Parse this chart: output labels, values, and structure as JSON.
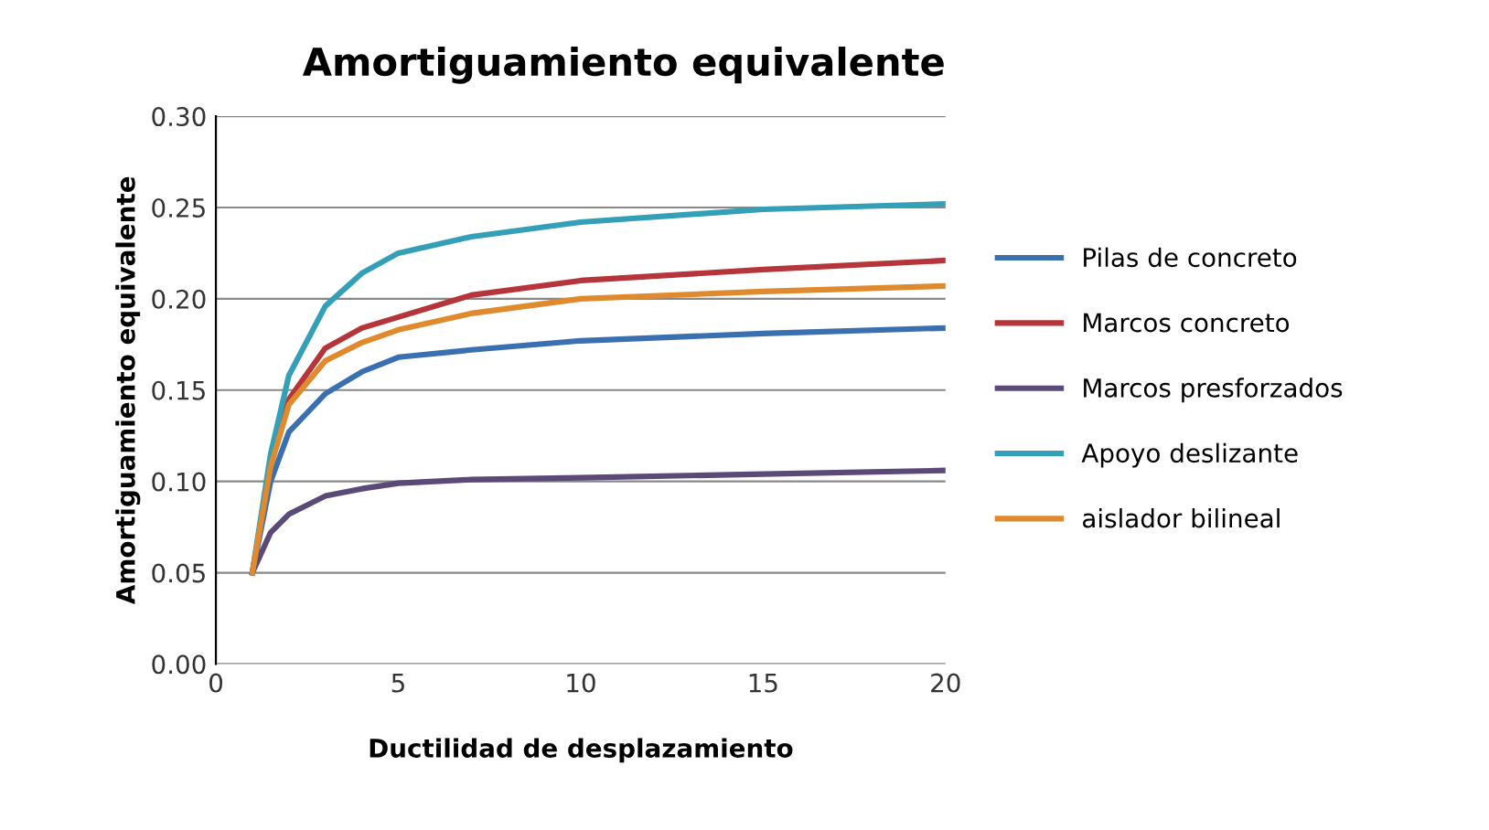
{
  "chart_data": {
    "type": "line",
    "title": "Amortiguamiento equivalente",
    "xlabel": "Ductilidad de desplazamiento",
    "ylabel": "Amortiguamiento equivalente",
    "x": [
      1,
      1.5,
      2,
      3,
      4,
      5,
      7,
      10,
      15,
      20
    ],
    "series": [
      {
        "name": "Pilas de concreto",
        "color": "#3a6fb0",
        "values": [
          0.05,
          0.1,
          0.127,
          0.148,
          0.16,
          0.168,
          0.172,
          0.177,
          0.181,
          0.184
        ]
      },
      {
        "name": "Marcos concreto",
        "color": "#b5353a",
        "values": [
          0.05,
          0.11,
          0.145,
          0.173,
          0.184,
          0.19,
          0.202,
          0.21,
          0.216,
          0.221
        ]
      },
      {
        "name": "Marcos presforzados",
        "color": "#5b4a78",
        "values": [
          0.05,
          0.072,
          0.082,
          0.092,
          0.096,
          0.099,
          0.101,
          0.102,
          0.104,
          0.106
        ]
      },
      {
        "name": "Apoyo deslizante",
        "color": "#34a0b8",
        "values": [
          0.05,
          0.115,
          0.158,
          0.196,
          0.214,
          0.225,
          0.234,
          0.242,
          0.249,
          0.252
        ]
      },
      {
        "name": "aislador bilineal",
        "color": "#e08a2e",
        "values": [
          0.05,
          0.108,
          0.142,
          0.166,
          0.176,
          0.183,
          0.192,
          0.2,
          0.204,
          0.207
        ]
      }
    ],
    "xlim": [
      0,
      20
    ],
    "xticks": [
      0,
      5,
      10,
      15,
      20
    ],
    "ylim": [
      0,
      0.3
    ],
    "yticks": [
      {
        "value": 0,
        "label": "0.00"
      },
      {
        "value": 0.05,
        "label": "0.05"
      },
      {
        "value": 0.1,
        "label": "0.10"
      },
      {
        "value": 0.15,
        "label": "0.15"
      },
      {
        "value": 0.2,
        "label": "0.20"
      },
      {
        "value": 0.25,
        "label": "0.25"
      },
      {
        "value": 0.3,
        "label": "0.30"
      }
    ],
    "grid": "y",
    "legend": "right",
    "marker": "none",
    "line_style": "solid"
  }
}
